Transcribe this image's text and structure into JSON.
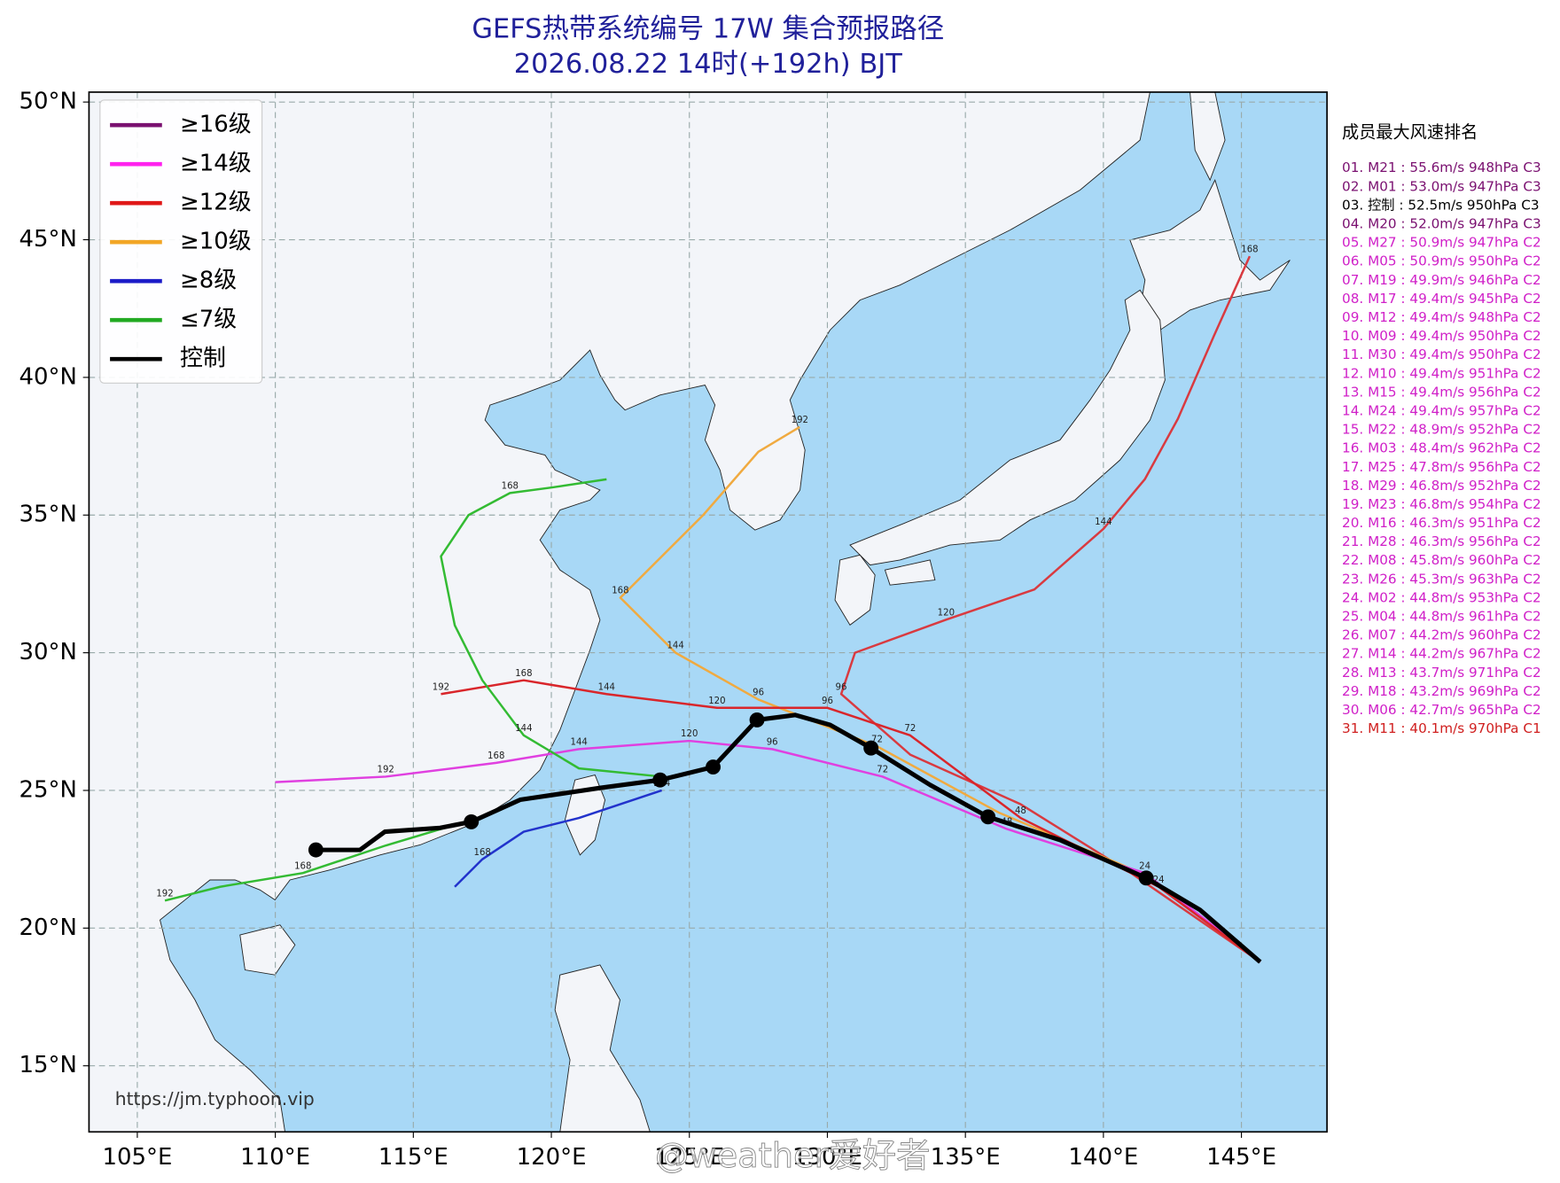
{
  "chart_data": {
    "type": "map",
    "title": "GEFS热带系统编号 17W 集合预报路径",
    "subtitle": "2026.08.22 14时(+192h) BJT",
    "xlim": [
      103.25,
      148.1
    ],
    "ylim": [
      12.6,
      50.36
    ],
    "xticks": [
      {
        "value": 105,
        "label": "105°E"
      },
      {
        "value": 110,
        "label": "110°E"
      },
      {
        "value": 115,
        "label": "115°E"
      },
      {
        "value": 120,
        "label": "120°E"
      },
      {
        "value": 125,
        "label": "125°E"
      },
      {
        "value": 130,
        "label": "130°E"
      },
      {
        "value": 135,
        "label": "135°E"
      },
      {
        "value": 140,
        "label": "140°E"
      },
      {
        "value": 145,
        "label": "145°E"
      }
    ],
    "yticks": [
      {
        "value": 15,
        "label": "15°N"
      },
      {
        "value": 20,
        "label": "20°N"
      },
      {
        "value": 25,
        "label": "25°N"
      },
      {
        "value": 30,
        "label": "30°N"
      },
      {
        "value": 35,
        "label": "35°N"
      },
      {
        "value": 40,
        "label": "40°N"
      },
      {
        "value": 45,
        "label": "45°N"
      },
      {
        "value": 50,
        "label": "50°N"
      }
    ],
    "grid": true,
    "legend": [
      {
        "name": "≥16级",
        "color": "#7a1070"
      },
      {
        "name": "≥14级",
        "color": "#ff22ee"
      },
      {
        "name": "≥12级",
        "color": "#e01818"
      },
      {
        "name": "≥10级",
        "color": "#f2a626"
      },
      {
        "name": "≥8级",
        "color": "#1c1cc8"
      },
      {
        "name": "≤7级",
        "color": "#22aa22"
      },
      {
        "name": "控制",
        "color": "#000000"
      }
    ],
    "tracks": [
      {
        "color": "#d93a40",
        "lon": [
          145.68,
          141.0,
          137.0,
          133.0,
          130.5,
          131.0,
          134.3,
          137.5,
          140.0,
          141.5,
          142.7,
          144.0,
          145.3
        ],
        "lat": [
          18.77,
          22.0,
          24.5,
          26.3,
          28.5,
          30.0,
          31.2,
          32.3,
          34.5,
          36.3,
          38.5,
          41.5,
          44.4
        ],
        "hours": [
          null,
          null,
          null,
          null,
          96,
          null,
          120,
          null,
          144,
          null,
          null,
          null,
          168
        ]
      },
      {
        "color": "#f0aa40",
        "lon": [
          145.68,
          141.6,
          136.2,
          131.8,
          127.5,
          124.5,
          122.5,
          124.0,
          125.5,
          127.5,
          129.0
        ],
        "lat": [
          18.77,
          21.9,
          24.2,
          26.6,
          28.3,
          30.0,
          32.0,
          33.5,
          35.0,
          37.3,
          38.2
        ],
        "hours": [
          null,
          null,
          null,
          72,
          96,
          144,
          168,
          null,
          null,
          null,
          192
        ]
      },
      {
        "color": "#e040e0",
        "lon": [
          145.68,
          141.5,
          136.5,
          132.0,
          128.0,
          125.0,
          121.0,
          118.0,
          114.0,
          110.0
        ],
        "lat": [
          18.77,
          22.0,
          23.6,
          25.5,
          26.5,
          26.8,
          26.5,
          26.0,
          25.5,
          25.3
        ],
        "hours": [
          null,
          24,
          48,
          72,
          96,
          120,
          144,
          168,
          192,
          null
        ]
      },
      {
        "color": "#d9262b",
        "lon": [
          145.68,
          142.0,
          137.0,
          133.0,
          130.0,
          126.0,
          122.0,
          119.0,
          116.0
        ],
        "lat": [
          18.77,
          21.5,
          24.0,
          27.0,
          28.0,
          28.0,
          28.5,
          29.0,
          28.5
        ],
        "hours": [
          null,
          24,
          48,
          72,
          96,
          120,
          144,
          168,
          192
        ]
      },
      {
        "color": "#33bb33",
        "lon": [
          124.0,
          121.0,
          119.0,
          117.5,
          116.5,
          116.0,
          117.0,
          118.5,
          120.0,
          122.0
        ],
        "lat": [
          25.5,
          25.8,
          27.0,
          29.0,
          31.0,
          33.5,
          35.0,
          35.8,
          36.0,
          36.3
        ],
        "hours": [
          null,
          null,
          144,
          null,
          null,
          null,
          null,
          168,
          null,
          null
        ]
      },
      {
        "color": "#2233cc",
        "lon": [
          124.0,
          121.0,
          119.0,
          117.5,
          116.5
        ],
        "lat": [
          25.0,
          24.0,
          23.5,
          22.5,
          21.5
        ],
        "hours": [
          144,
          null,
          null,
          168,
          null
        ]
      },
      {
        "color": "#33bb33",
        "lon": [
          117.0,
          114.0,
          111.0,
          108.0,
          106.0
        ],
        "lat": [
          23.9,
          23.0,
          22.0,
          21.5,
          21.0
        ],
        "hours": [
          null,
          null,
          168,
          null,
          192
        ]
      }
    ],
    "control": {
      "color": "#000000",
      "lon": [
        111.47,
        113.07,
        113.97,
        115.97,
        117.1,
        118.87,
        121.76,
        123.94,
        125.86,
        127.45,
        128.83,
        130.1,
        131.58,
        133.72,
        135.82,
        138.43,
        141.55,
        143.5,
        145.68
      ],
      "lat": [
        22.84,
        22.84,
        23.5,
        23.64,
        23.86,
        24.66,
        25.09,
        25.38,
        25.85,
        27.56,
        27.74,
        27.38,
        26.54,
        25.2,
        24.04,
        23.2,
        21.82,
        20.66,
        18.77
      ],
      "dots": [
        111.47,
        117.1,
        123.94,
        125.86,
        127.45,
        131.58,
        135.82,
        141.55
      ]
    },
    "ranking_title": "成员最大风速排名",
    "ranking": [
      {
        "text": "01. M21 : 55.6m/s 948hPa C3",
        "color": "#7a1070"
      },
      {
        "text": "02. M01 : 53.0m/s 947hPa C3",
        "color": "#7a1070"
      },
      {
        "text": "03. 控制 : 52.5m/s 950hPa C3",
        "color": "#000000"
      },
      {
        "text": "04. M20 : 52.0m/s 947hPa C3",
        "color": "#7a1070"
      },
      {
        "text": "05. M27 : 50.9m/s 947hPa C2",
        "color": "#d020c8"
      },
      {
        "text": "06. M05 : 50.9m/s 950hPa C2",
        "color": "#d020c8"
      },
      {
        "text": "07. M19 : 49.9m/s 946hPa C2",
        "color": "#d020c8"
      },
      {
        "text": "08. M17 : 49.4m/s 945hPa C2",
        "color": "#d020c8"
      },
      {
        "text": "09. M12 : 49.4m/s 948hPa C2",
        "color": "#d020c8"
      },
      {
        "text": "10. M09 : 49.4m/s 950hPa C2",
        "color": "#d020c8"
      },
      {
        "text": "11. M30 : 49.4m/s 950hPa C2",
        "color": "#d020c8"
      },
      {
        "text": "12. M10 : 49.4m/s 951hPa C2",
        "color": "#d020c8"
      },
      {
        "text": "13. M15 : 49.4m/s 956hPa C2",
        "color": "#d020c8"
      },
      {
        "text": "14. M24 : 49.4m/s 957hPa C2",
        "color": "#d020c8"
      },
      {
        "text": "15. M22 : 48.9m/s 952hPa C2",
        "color": "#d020c8"
      },
      {
        "text": "16. M03 : 48.4m/s 962hPa C2",
        "color": "#d020c8"
      },
      {
        "text": "17. M25 : 47.8m/s 956hPa C2",
        "color": "#d020c8"
      },
      {
        "text": "18. M29 : 46.8m/s 952hPa C2",
        "color": "#d020c8"
      },
      {
        "text": "19. M23 : 46.8m/s 954hPa C2",
        "color": "#d020c8"
      },
      {
        "text": "20. M16 : 46.3m/s 951hPa C2",
        "color": "#d020c8"
      },
      {
        "text": "21. M28 : 46.3m/s 956hPa C2",
        "color": "#d020c8"
      },
      {
        "text": "22. M08 : 45.8m/s 960hPa C2",
        "color": "#d020c8"
      },
      {
        "text": "23. M26 : 45.3m/s 963hPa C2",
        "color": "#d020c8"
      },
      {
        "text": "24. M02 : 44.8m/s 953hPa C2",
        "color": "#d020c8"
      },
      {
        "text": "25. M04 : 44.8m/s 961hPa C2",
        "color": "#d020c8"
      },
      {
        "text": "26. M07 : 44.2m/s 960hPa C2",
        "color": "#d020c8"
      },
      {
        "text": "27. M14 : 44.2m/s 967hPa C2",
        "color": "#d020c8"
      },
      {
        "text": "28. M13 : 43.7m/s 971hPa C2",
        "color": "#d020c8"
      },
      {
        "text": "29. M18 : 43.2m/s 969hPa C2",
        "color": "#d020c8"
      },
      {
        "text": "30. M06 : 42.7m/s 965hPa C2",
        "color": "#d020c8"
      },
      {
        "text": "31. M11 : 40.1m/s 970hPa C1",
        "color": "#d02020"
      }
    ],
    "source_url": "https://jm.typhoon.vip",
    "watermark": "@weather爱好者"
  }
}
